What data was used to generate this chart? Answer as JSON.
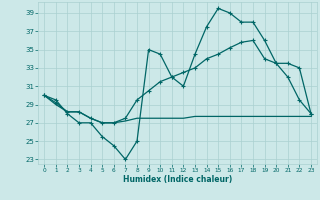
{
  "xlabel": "Humidex (Indice chaleur)",
  "x_ticks": [
    0,
    1,
    2,
    3,
    4,
    5,
    6,
    7,
    8,
    9,
    10,
    11,
    12,
    13,
    14,
    15,
    16,
    17,
    18,
    19,
    20,
    21,
    22,
    23
  ],
  "y_ticks": [
    23,
    25,
    27,
    29,
    31,
    33,
    35,
    37,
    39
  ],
  "ylim": [
    22.5,
    40.2
  ],
  "xlim": [
    -0.5,
    23.5
  ],
  "background_color": "#cce8e8",
  "grid_color": "#aad0d0",
  "line_color": "#006666",
  "max_vals": [
    30,
    29.5,
    28,
    27,
    27,
    25.5,
    24.5,
    23,
    25,
    35,
    34.5,
    32,
    31,
    34.5,
    37.5,
    39.5,
    39,
    38,
    38,
    36,
    33.5,
    32,
    29.5,
    28
  ],
  "avg_vals": [
    30,
    29.2,
    28.2,
    28.2,
    27.5,
    27.0,
    27.0,
    27.5,
    29.5,
    30.5,
    31.5,
    32,
    32.5,
    33,
    34,
    34.5,
    35.2,
    35.8,
    36,
    34,
    33.5,
    33.5,
    33,
    28
  ],
  "min_vals": [
    30,
    29,
    28.2,
    28.2,
    27.5,
    27.0,
    27.0,
    27.2,
    27.5,
    27.5,
    27.5,
    27.5,
    27.5,
    27.7,
    27.7,
    27.7,
    27.7,
    27.7,
    27.7,
    27.7,
    27.7,
    27.7,
    27.7,
    27.7
  ]
}
